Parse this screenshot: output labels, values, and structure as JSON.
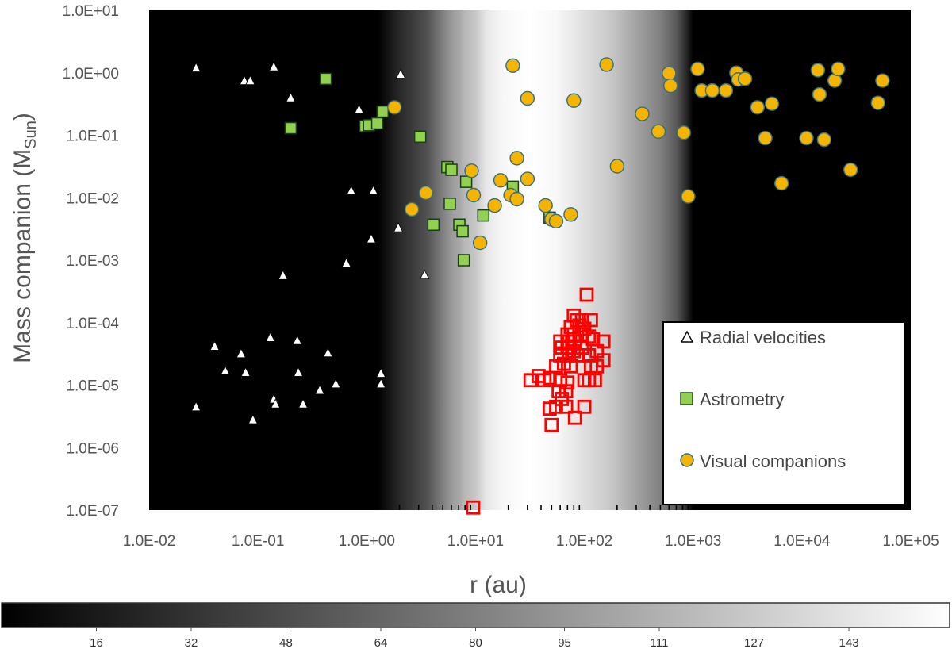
{
  "chart_data": {
    "type": "scatter",
    "xlabel": "r (au)",
    "ylabel_main": "Mass companion (M",
    "ylabel_sub": "Sun",
    "ylabel_end": ")",
    "x_scale": "log",
    "y_scale": "log",
    "xlim": [
      0.01,
      100000
    ],
    "ylim": [
      1e-07,
      10
    ],
    "x_tick_labels": [
      "1.0E-02",
      "1.0E-01",
      "1.0E+00",
      "1.0E+01",
      "1.0E+02",
      "1.0E+03",
      "1.0E+04",
      "1.0E+05"
    ],
    "x_tick_values": [
      0.01,
      0.1,
      1,
      10,
      100,
      1000,
      10000,
      100000
    ],
    "y_tick_labels": [
      "1.0E-07",
      "1.0E-06",
      "1.0E-05",
      "1.0E-04",
      "1.0E-03",
      "1.0E-02",
      "1.0E-01",
      "1.0E+00",
      "1.0E+01"
    ],
    "y_tick_values": [
      1e-07,
      1e-06,
      1e-05,
      0.0001,
      0.001,
      0.01,
      0.1,
      1,
      10
    ],
    "background_profile": {
      "description": "grayscale weighting vs r (0-160 scale)",
      "log_r": [
        -2,
        0.1,
        0.3,
        0.55,
        0.7,
        0.8,
        0.85,
        0.9,
        1.0,
        1.1,
        1.25,
        1.5,
        1.75,
        2.0,
        2.25,
        2.5,
        2.7,
        2.85,
        2.95,
        3.0,
        5.0
      ],
      "values": [
        0,
        0,
        25,
        50,
        80,
        100,
        105,
        115,
        125,
        145,
        155,
        160,
        155,
        140,
        125,
        100,
        80,
        55,
        20,
        0,
        0
      ]
    },
    "series": [
      {
        "name": "Radial velocities",
        "marker": "triangle",
        "color": "#ffffff",
        "points": [
          [
            0.027,
            1.2
          ],
          [
            0.075,
            0.75
          ],
          [
            0.085,
            0.75
          ],
          [
            0.14,
            1.25
          ],
          [
            0.2,
            0.4
          ],
          [
            0.85,
            0.26
          ],
          [
            2.05,
            0.95
          ],
          [
            0.72,
            0.013
          ],
          [
            1.15,
            0.013
          ],
          [
            0.65,
            0.0009
          ],
          [
            1.1,
            0.0022
          ],
          [
            1.95,
            0.0033
          ],
          [
            3.4,
            0.00058
          ],
          [
            0.17,
            0.00057
          ],
          [
            0.04,
            4.2e-05
          ],
          [
            0.07,
            3.2e-05
          ],
          [
            0.13,
            5.8e-05
          ],
          [
            0.23,
            5.2e-05
          ],
          [
            0.44,
            3.3e-05
          ],
          [
            0.05,
            1.7e-05
          ],
          [
            0.077,
            1.6e-05
          ],
          [
            0.235,
            1.6e-05
          ],
          [
            0.52,
            1.05e-05
          ],
          [
            0.37,
            8.3e-06
          ],
          [
            1.35,
            1.55e-05
          ],
          [
            1.35,
            1.05e-05
          ],
          [
            0.027,
            4.5e-06
          ],
          [
            0.14,
            6e-06
          ],
          [
            0.145,
            5e-06
          ],
          [
            0.26,
            5e-06
          ],
          [
            0.09,
            2.8e-06
          ]
        ]
      },
      {
        "name": "Astrometry",
        "marker": "square",
        "color": "#92d050",
        "points": [
          [
            0.42,
            0.8
          ],
          [
            0.2,
            0.13
          ],
          [
            0.97,
            0.14
          ],
          [
            1.05,
            0.145
          ],
          [
            1.25,
            0.155
          ],
          [
            1.4,
            0.24
          ],
          [
            3.1,
            0.095
          ],
          [
            5.5,
            0.031
          ],
          [
            6.0,
            0.028
          ],
          [
            8.2,
            0.018
          ],
          [
            22,
            0.015
          ],
          [
            5.8,
            0.008
          ],
          [
            4.1,
            0.0037
          ],
          [
            7.1,
            0.0037
          ],
          [
            7.6,
            0.0029
          ],
          [
            11.8,
            0.0052
          ],
          [
            7.8,
            0.001
          ],
          [
            48,
            0.0048
          ]
        ]
      },
      {
        "name": "Visual companions",
        "marker": "circle",
        "color": "#f5b400",
        "points": [
          [
            1.8,
            0.28
          ],
          [
            22,
            1.3
          ],
          [
            30,
            0.39
          ],
          [
            80,
            0.36
          ],
          [
            160,
            1.35
          ],
          [
            340,
            0.22
          ],
          [
            480,
            0.115
          ],
          [
            600,
            0.98
          ],
          [
            620,
            0.62
          ],
          [
            820,
            0.11
          ],
          [
            1100,
            1.15
          ],
          [
            1200,
            0.52
          ],
          [
            1500,
            0.52
          ],
          [
            2000,
            0.52
          ],
          [
            2500,
            1.0
          ],
          [
            2600,
            0.78
          ],
          [
            3000,
            0.8
          ],
          [
            3900,
            0.28
          ],
          [
            4600,
            0.09
          ],
          [
            5300,
            0.32
          ],
          [
            6500,
            0.017
          ],
          [
            11000,
            0.09
          ],
          [
            14000,
            1.1
          ],
          [
            14500,
            0.45
          ],
          [
            16000,
            0.085
          ],
          [
            20000,
            0.75
          ],
          [
            21500,
            1.15
          ],
          [
            28000,
            0.028
          ],
          [
            50000,
            0.33
          ],
          [
            55000,
            0.75
          ],
          [
            3.5,
            0.012
          ],
          [
            2.6,
            0.0065
          ],
          [
            9.2,
            0.027
          ],
          [
            9.6,
            0.011
          ],
          [
            17,
            0.019
          ],
          [
            21,
            0.011
          ],
          [
            24,
            0.0095
          ],
          [
            30,
            0.02
          ],
          [
            24,
            0.043
          ],
          [
            15,
            0.0075
          ],
          [
            11,
            0.0019
          ],
          [
            44,
            0.0075
          ],
          [
            50,
            0.0045
          ],
          [
            55,
            0.0042
          ],
          [
            75,
            0.0054
          ],
          [
            200,
            0.032
          ],
          [
            900,
            0.0105
          ]
        ]
      },
      {
        "name": "",
        "marker": "open-square",
        "color": "#ff0000",
        "points": [
          [
            105,
            0.00028
          ],
          [
            80,
            0.00013
          ],
          [
            85,
            0.00011
          ],
          [
            95,
            0.00011
          ],
          [
            115,
            0.00011
          ],
          [
            75,
            8.5e-05
          ],
          [
            90,
            9e-05
          ],
          [
            100,
            8e-05
          ],
          [
            70,
            6.5e-05
          ],
          [
            80,
            6.5e-05
          ],
          [
            95,
            6.5e-05
          ],
          [
            110,
            6e-05
          ],
          [
            60,
            5e-05
          ],
          [
            72,
            5e-05
          ],
          [
            82,
            5e-05
          ],
          [
            120,
            5.5e-05
          ],
          [
            150,
            5e-05
          ],
          [
            62,
            4e-05
          ],
          [
            70,
            4e-05
          ],
          [
            80,
            3.5e-05
          ],
          [
            95,
            4e-05
          ],
          [
            130,
            3.5e-05
          ],
          [
            60,
            3e-05
          ],
          [
            72,
            3e-05
          ],
          [
            88,
            3e-05
          ],
          [
            110,
            3e-05
          ],
          [
            150,
            2.5e-05
          ],
          [
            55,
            2e-05
          ],
          [
            65,
            2.2e-05
          ],
          [
            75,
            2e-05
          ],
          [
            115,
            2e-05
          ],
          [
            130,
            2e-05
          ],
          [
            32,
            1.2e-05
          ],
          [
            38,
            1.4e-05
          ],
          [
            43,
            1.2e-05
          ],
          [
            48,
            1.3e-05
          ],
          [
            60,
            1.2e-05
          ],
          [
            70,
            1.1e-05
          ],
          [
            100,
            1.2e-05
          ],
          [
            110,
            1.2e-05
          ],
          [
            125,
            1.2e-05
          ],
          [
            58,
            8e-06
          ],
          [
            68,
            8e-06
          ],
          [
            62,
            6e-06
          ],
          [
            55,
            4.5e-06
          ],
          [
            68,
            4.5e-06
          ],
          [
            48,
            4.2e-06
          ],
          [
            100,
            4.5e-06
          ],
          [
            50,
            2.3e-06
          ],
          [
            82,
            3e-06
          ],
          [
            9.5,
            1.1e-07
          ]
        ]
      }
    ],
    "legend": {
      "placement": "bottom-right",
      "entries": [
        "Radial velocities",
        "Astrometry",
        "Visual companions"
      ]
    },
    "colorbar": {
      "orientation": "horizontal",
      "min": 0,
      "max": 160,
      "tick_labels": [
        "16",
        "32",
        "48",
        "64",
        "80",
        "95",
        "111",
        "127",
        "143"
      ],
      "tick_values": [
        16,
        32,
        48,
        64,
        80,
        95,
        111,
        127,
        143
      ]
    }
  }
}
